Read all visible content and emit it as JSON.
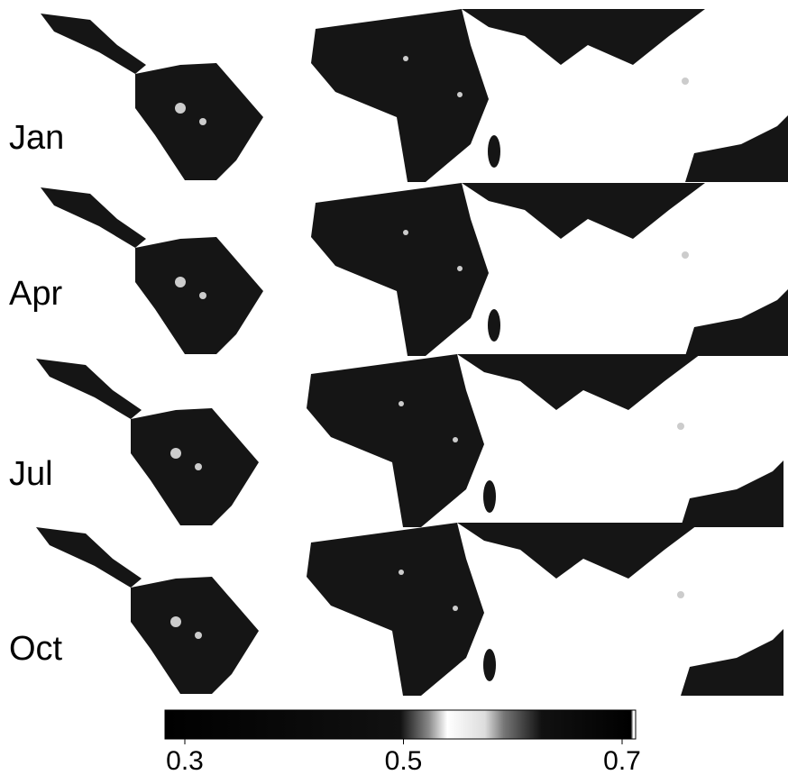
{
  "rows": [
    "Jan",
    "Apr",
    "Jul",
    "Oct"
  ],
  "colorbar": {
    "range": [
      0.3,
      0.7
    ],
    "ticks": [
      0.3,
      0.5,
      0.7
    ]
  }
}
